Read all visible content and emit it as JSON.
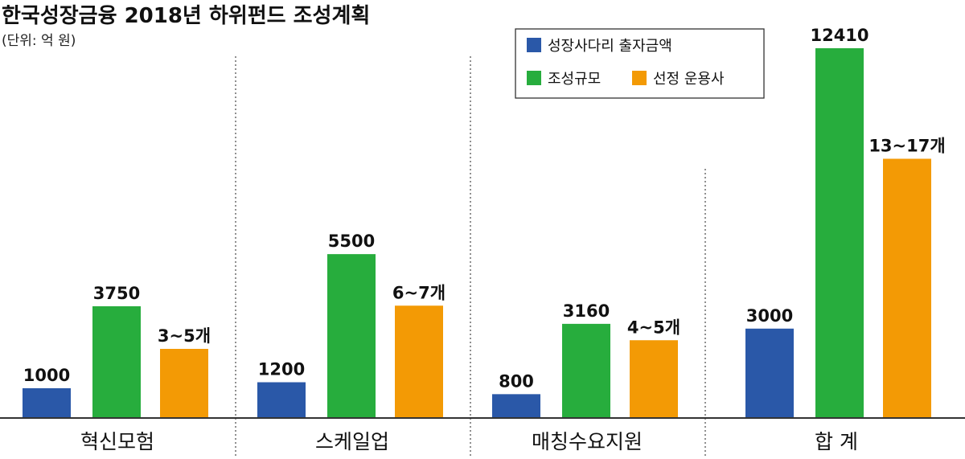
{
  "chart_data": {
    "type": "bar",
    "title": "한국성장금융 2018년 하위펀드 조성계획",
    "subtitle": "(단위: 억 원)",
    "categories": [
      "혁신모험",
      "스케일업",
      "매칭수요지원",
      "합 계"
    ],
    "series": [
      {
        "name": "성장사다리 출자금액",
        "color": "#2a58a8",
        "values": [
          1000,
          1200,
          800,
          3000
        ],
        "labels": [
          "1000",
          "1200",
          "800",
          "3000"
        ]
      },
      {
        "name": "조성규모",
        "color": "#27ad3d",
        "values": [
          3750,
          5500,
          3160,
          12410
        ],
        "labels": [
          "3750",
          "5500",
          "3160",
          "12410"
        ]
      },
      {
        "name": "선정 운용사",
        "color": "#f39a05",
        "values": [
          4,
          6.5,
          4.5,
          15
        ],
        "labels": [
          "3~5개",
          "6~7개",
          "4~5개",
          "13~17개"
        ]
      }
    ],
    "legend": "top-right",
    "grid": false
  }
}
